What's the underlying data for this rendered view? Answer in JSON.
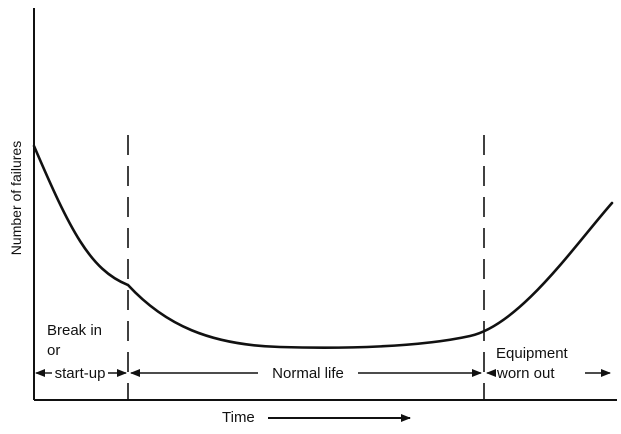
{
  "diagram": {
    "ylabel": "Number of failures",
    "xlabel": "Time",
    "phases": {
      "break_in": {
        "line1": "Break in",
        "line2": "or",
        "line3": "start-up"
      },
      "normal_life": "Normal life",
      "worn_out": {
        "line1": "Equipment",
        "line2": "worn out"
      }
    },
    "colors": {
      "ink": "#111111",
      "background": "#ffffff"
    }
  }
}
